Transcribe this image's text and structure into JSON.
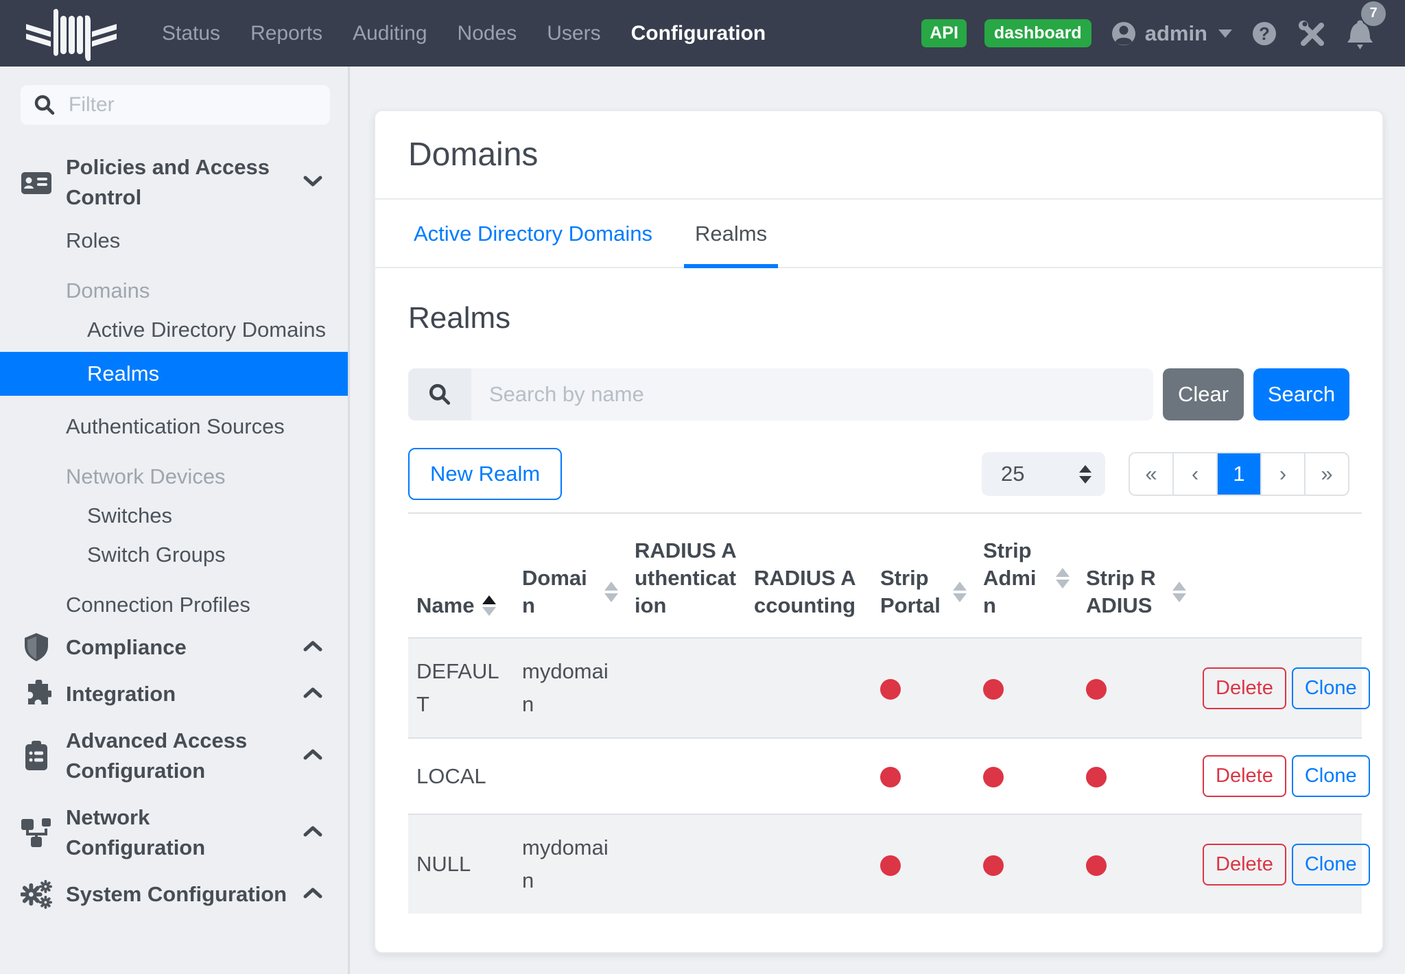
{
  "navbar": {
    "menu": [
      {
        "label": "Status",
        "active": false
      },
      {
        "label": "Reports",
        "active": false
      },
      {
        "label": "Auditing",
        "active": false
      },
      {
        "label": "Nodes",
        "active": false
      },
      {
        "label": "Users",
        "active": false
      },
      {
        "label": "Configuration",
        "active": true
      }
    ],
    "api_badge": "API",
    "dashboard_badge": "dashboard",
    "username": "admin",
    "notification_count": "7"
  },
  "sidebar": {
    "filter_placeholder": "Filter",
    "entries": [
      {
        "kind": "section",
        "label": "Policies and Access Control",
        "icon": "address-card-icon",
        "chevron": "down"
      },
      {
        "kind": "link",
        "label": "Roles",
        "indent": 1,
        "active": false
      },
      {
        "kind": "category",
        "label": "Domains",
        "indent": 1
      },
      {
        "kind": "link",
        "label": "Active Directory Domains",
        "indent": 2,
        "active": false
      },
      {
        "kind": "link",
        "label": "Realms",
        "indent": 2,
        "active": true
      },
      {
        "kind": "link",
        "label": "Authentication Sources",
        "indent": 1,
        "active": false,
        "gap": true
      },
      {
        "kind": "category",
        "label": "Network Devices",
        "indent": 1
      },
      {
        "kind": "link",
        "label": "Switches",
        "indent": 2,
        "active": false
      },
      {
        "kind": "link",
        "label": "Switch Groups",
        "indent": 2,
        "active": false
      },
      {
        "kind": "link",
        "label": "Connection Profiles",
        "indent": 1,
        "active": false,
        "gap": true
      },
      {
        "kind": "section",
        "label": "Compliance",
        "icon": "shield-icon",
        "chevron": "up"
      },
      {
        "kind": "section",
        "label": "Integration",
        "icon": "puzzle-piece-icon",
        "chevron": "up"
      },
      {
        "kind": "section",
        "label": "Advanced Access Configuration",
        "icon": "clipboard-list-icon",
        "chevron": "up"
      },
      {
        "kind": "section",
        "label": "Network Configuration",
        "icon": "sitemap-icon",
        "chevron": "up"
      },
      {
        "kind": "section",
        "label": "System Configuration",
        "icon": "gears-icon",
        "chevron": "up"
      }
    ]
  },
  "page": {
    "card_title": "Domains",
    "tabs": [
      {
        "label": "Active Directory Domains",
        "active": false
      },
      {
        "label": "Realms",
        "active": true
      }
    ],
    "section_heading": "Realms",
    "search_placeholder": "Search by name",
    "clear_label": "Clear",
    "search_label": "Search",
    "new_button_label": "New Realm",
    "per_page_value": "25",
    "pagination": [
      {
        "label": "«",
        "active": false
      },
      {
        "label": "‹",
        "active": false
      },
      {
        "label": "1",
        "active": true
      },
      {
        "label": "›",
        "active": false
      },
      {
        "label": "»",
        "active": false
      }
    ]
  },
  "table": {
    "columns": [
      {
        "label": "Name",
        "sort": "asc"
      },
      {
        "label": "Domain",
        "sort": "none"
      },
      {
        "label": "RADIUS Authentication",
        "sort": null
      },
      {
        "label": "RADIUS Accounting",
        "sort": null
      },
      {
        "label": "Strip Portal",
        "sort": "none"
      },
      {
        "label": "Strip Admin",
        "sort": "none"
      },
      {
        "label": "Strip RADIUS",
        "sort": "none"
      },
      {
        "label": "",
        "sort": null
      }
    ],
    "delete_label": "Delete",
    "clone_label": "Clone",
    "rows": [
      {
        "name": "DEFAULT",
        "domain": "mydomain",
        "radius_authentication": "",
        "radius_accounting": "",
        "strip_portal": true,
        "strip_admin": true,
        "strip_radius": true
      },
      {
        "name": "LOCAL",
        "domain": "",
        "radius_authentication": "",
        "radius_accounting": "",
        "strip_portal": true,
        "strip_admin": true,
        "strip_radius": true
      },
      {
        "name": "NULL",
        "domain": "mydomain",
        "radius_authentication": "",
        "radius_accounting": "",
        "strip_portal": true,
        "strip_admin": true,
        "strip_radius": true
      }
    ]
  },
  "colors": {
    "primary": "#007bff",
    "danger": "#dc3545",
    "success": "#28a745",
    "secondary": "#6c757d",
    "navbar_bg": "#383e4e",
    "sidebar_active_bg": "#007bff"
  }
}
